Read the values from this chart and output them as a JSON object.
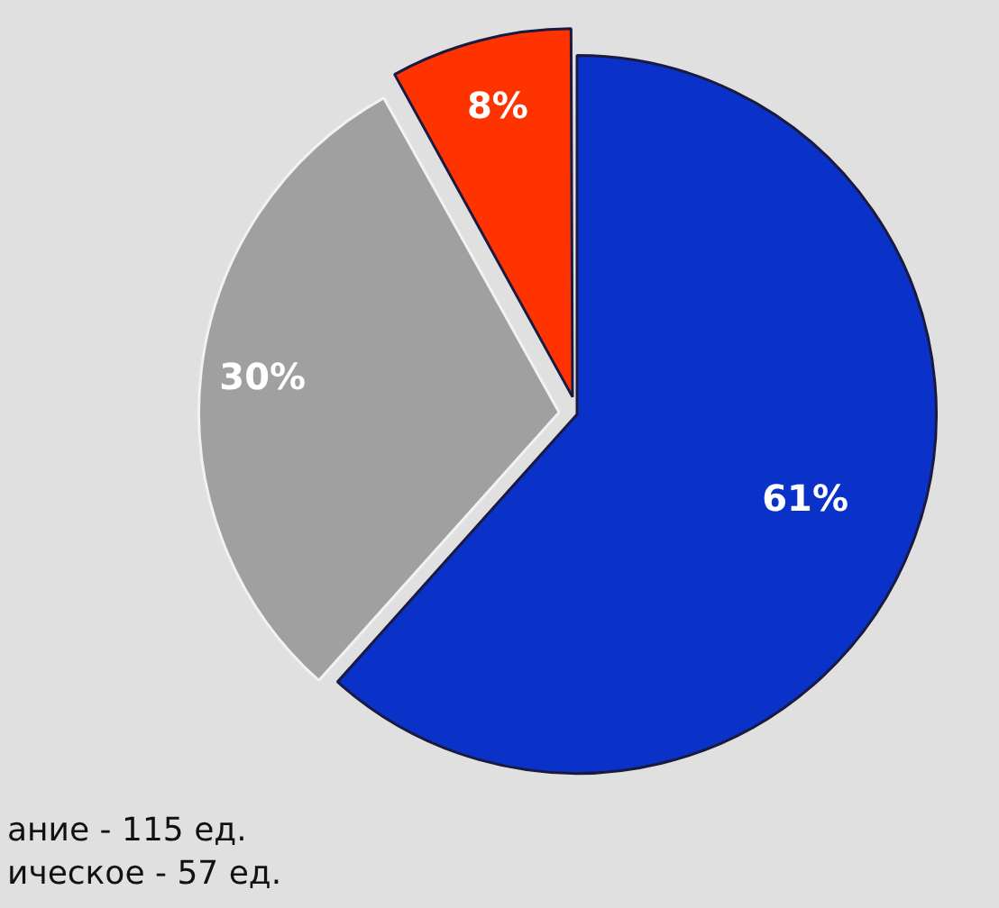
{
  "chart_data": {
    "type": "pie",
    "categories": [
      "ание - 115 ед.",
      "ическое - 57 ед.",
      null
    ],
    "values": [
      61,
      30,
      8
    ],
    "colors": [
      "#0a32c8",
      "#a0a0a0",
      "#ff3300"
    ],
    "value_labels": [
      "61%",
      "30%",
      "8%"
    ]
  }
}
